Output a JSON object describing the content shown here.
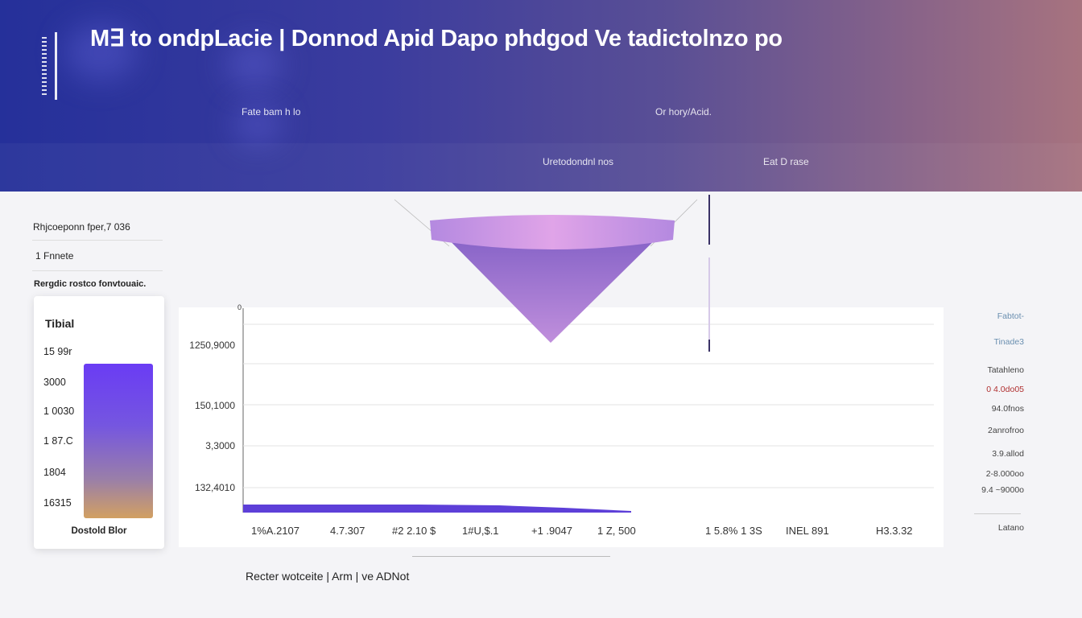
{
  "header": {
    "title": "M∃ to ondpLacie | Donnod Apid Dapo phdgod Ve tadictolnzo po",
    "meta_left": "Fate bam h lo",
    "meta_right": "Or hory/Acid.",
    "sub_center": "Uretodondnl nos",
    "sub_right": "Eat D rase"
  },
  "sidebar": {
    "label_1": "Rhjcoeponn fper,7 036",
    "label_2": "1 Fnnete",
    "label_3": "Rergdic rostco  fonvtouaic."
  },
  "card": {
    "title": "Tibial",
    "values": [
      "15 99r",
      "3000",
      "1 0030",
      "1 87.C",
      "1804",
      "16315"
    ],
    "footer": "Dostold Blor"
  },
  "chart": {
    "yticks": [
      "1250,9000",
      "150,1000",
      "3,3000",
      "132,4010"
    ],
    "ytop": "0",
    "xticks": [
      "1%A.2107",
      "4.7.307",
      "#2 2.10 $",
      "1#U,$.1",
      "+1 .9047",
      "1 Z, 500",
      "1 5.8% 1 3S",
      "INEL 891",
      "H3.3.32"
    ],
    "right_labels": [
      "Fabtot-",
      "Tinade3",
      "Tatahleno",
      "0 4.0do05",
      "94.0fnos",
      "2anrofroo",
      "3.9.allod",
      "2-8.000oo",
      "9.4 ~9000o",
      "Latano"
    ],
    "accent": "#5d3fd8",
    "highlight_label_color": "#b03030"
  },
  "footer": {
    "text": "Recter wotceite | Arm  | ve ADNot"
  }
}
